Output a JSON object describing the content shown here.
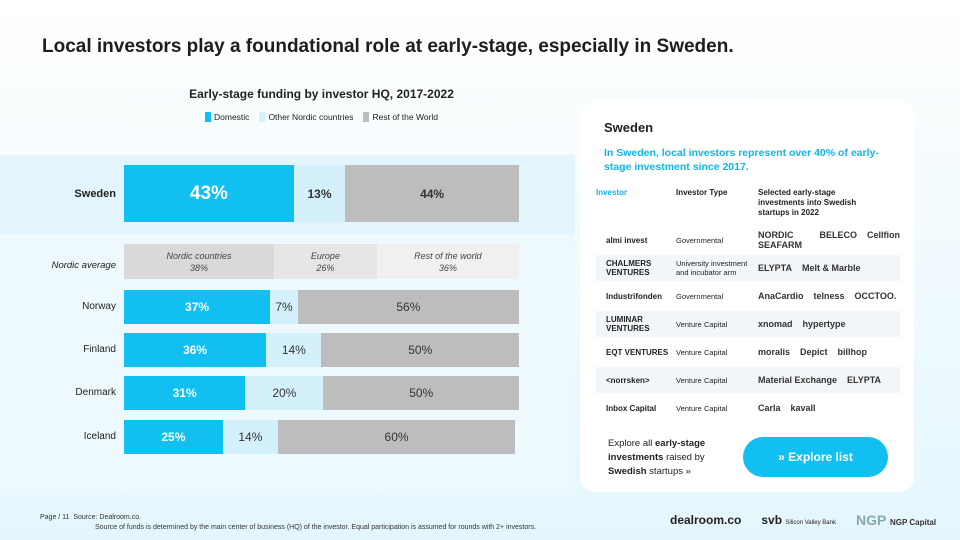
{
  "title": "Local investors play a foundational role at early-stage, especially in Sweden.",
  "chart_data": {
    "type": "bar",
    "title": "Early-stage funding by investor HQ, 2017-2022",
    "legend": [
      "Domestic",
      "Other Nordic countries",
      "Rest of the World"
    ],
    "colors": {
      "domestic": "#11bff0",
      "other": "#d4f1fb",
      "rest": "#bdbdbd"
    },
    "categories": [
      "Sweden",
      "Norway",
      "Finland",
      "Denmark",
      "Iceland"
    ],
    "series": [
      {
        "name": "Domestic",
        "values": [
          43,
          37,
          36,
          31,
          25
        ]
      },
      {
        "name": "Other Nordic countries",
        "values": [
          13,
          7,
          14,
          20,
          14
        ]
      },
      {
        "name": "Rest of the World",
        "values": [
          44,
          56,
          50,
          50,
          60
        ]
      }
    ],
    "labels": [
      [
        "43%",
        "13%",
        "44%"
      ],
      [
        "37%",
        "7%",
        "56%"
      ],
      [
        "36%",
        "14%",
        "50%"
      ],
      [
        "31%",
        "20%",
        "50%"
      ],
      [
        "25%",
        "14%",
        "60%"
      ]
    ],
    "nordic_average": {
      "label": "Nordic average",
      "segments": [
        {
          "name": "Nordic countries",
          "value": 38,
          "label": "38%"
        },
        {
          "name": "Europe",
          "value": 26,
          "label": "26%"
        },
        {
          "name": "Rest of the world",
          "value": 36,
          "label": "36%"
        }
      ]
    }
  },
  "card": {
    "heading": "Sweden",
    "subtitle": "In Sweden, local investors represent over 40% of early-stage investment since 2017.",
    "headers": [
      "Investor",
      "Investor Type",
      "Selected early-stage investments into Swedish startups in 2022"
    ],
    "rows": [
      {
        "investor": "almi invest",
        "type": "Governmental",
        "startups": [
          "NORDIC SEAFARM",
          "BELECO",
          "Cellfion"
        ]
      },
      {
        "investor": "CHALMERS VENTURES",
        "type": "University investment and incubator arm",
        "startups": [
          "ELYPTA",
          "Melt & Marble"
        ]
      },
      {
        "investor": "Industrifonden",
        "type": "Governmental",
        "startups": [
          "AnaCardio",
          "telness",
          "OCCTOO."
        ]
      },
      {
        "investor": "LUMINAR VENTURES",
        "type": "Venture Capital",
        "startups": [
          "xnomad",
          "hypertype"
        ]
      },
      {
        "investor": "EQT VENTURES",
        "type": "Venture Capital",
        "startups": [
          "moralis",
          "Depict",
          "billhop"
        ]
      },
      {
        "investor": "<norrsken>",
        "type": "Venture Capital",
        "startups": [
          "Material Exchange",
          "ELYPTA"
        ]
      },
      {
        "investor": "Inbox Capital",
        "type": "Venture Capital",
        "startups": [
          "Carla",
          "kavall"
        ]
      }
    ],
    "explore_pre": "Explore all ",
    "explore_bold": "early-stage investments",
    "explore_mid": " raised by ",
    "explore_bold2": "Swedish",
    "explore_post": " startups »",
    "button": "» Explore list"
  },
  "footer": {
    "page": "Page / 11",
    "source": "Source: Dealroom.co.",
    "note": "Source of funds is determined by the main center of business (HQ) of the investor. Equal participation is assumed for rounds with 2+ investors."
  },
  "logos": [
    "dealroom.co",
    "svb",
    "Silicon Valley Bank",
    "NGP",
    "NGP Capital"
  ]
}
